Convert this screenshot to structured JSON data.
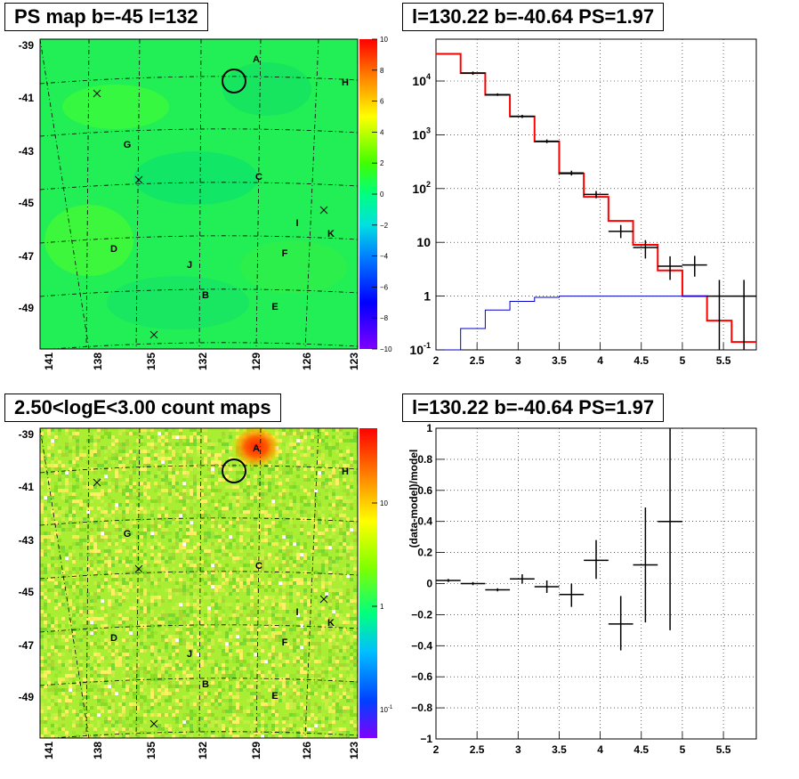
{
  "panels": {
    "top_left_title": "PS map b=-45 l=132",
    "top_right_title": "l=130.22 b=-40.64 PS=1.97",
    "bottom_left_title": "2.50<logE<3.00 count maps",
    "bottom_right_title": "l=130.22 b=-40.64 PS=1.97"
  },
  "map_axes": {
    "y_ticks": [
      "-39",
      "-41",
      "-43",
      "-45",
      "-47",
      "-49"
    ],
    "x_ticks": [
      "141",
      "138",
      "135",
      "132",
      "129",
      "126",
      "123"
    ]
  },
  "source_labels": [
    "A",
    "H",
    "G",
    "C",
    "I",
    "K",
    "D",
    "F",
    "J",
    "B",
    "E"
  ],
  "ps_colorbar": {
    "ticks": [
      "10",
      "8",
      "6",
      "4",
      "2",
      "0",
      "−2",
      "−4",
      "−6",
      "−8",
      "−10"
    ]
  },
  "count_colorbar": {
    "ticks": [
      "10",
      "1"
    ],
    "min_tick_base": "10",
    "min_tick_exp": "-1"
  },
  "chart_data": [
    {
      "type": "line",
      "panel": "top_right",
      "title": "l=130.22 b=-40.64 PS=1.97",
      "xlim": [
        2.0,
        5.9
      ],
      "ylim": [
        0.1,
        60000
      ],
      "ylog": true,
      "grid": true,
      "x_ticks": [
        "2",
        "2.5",
        "3",
        "3.5",
        "4",
        "4.5",
        "5",
        "5.5"
      ],
      "y_tick_labels": [
        {
          "base": "10",
          "exp": "-1",
          "v": 0.1
        },
        {
          "base": "1",
          "exp": "",
          "v": 1
        },
        {
          "base": "10",
          "exp": "",
          "v": 10
        },
        {
          "base": "10",
          "exp": "2",
          "v": 100
        },
        {
          "base": "10",
          "exp": "3",
          "v": 1000
        },
        {
          "base": "10",
          "exp": "4",
          "v": 10000
        }
      ],
      "series": [
        {
          "color": "#ff0000",
          "bin_edges": [
            2.0,
            2.3,
            2.6,
            2.9,
            3.2,
            3.5,
            3.8,
            4.1,
            4.4,
            4.7,
            5.0,
            5.3,
            5.6,
            5.9
          ],
          "values": [
            32000,
            14000,
            5500,
            2200,
            750,
            190,
            70,
            25,
            9,
            3,
            1,
            0.35,
            0.14
          ]
        },
        {
          "color": "#0000cc",
          "bin_edges": [
            2.0,
            2.3,
            2.6,
            2.9,
            3.2,
            3.5,
            3.8,
            4.1,
            4.4,
            4.7,
            5.0,
            5.3,
            5.6,
            5.9
          ],
          "values": [
            0.09,
            0.25,
            0.55,
            0.8,
            0.95,
            1.0,
            1.0,
            1.0,
            1.0,
            1.0,
            1.0,
            1.0,
            1.0
          ]
        },
        {
          "color": "#000000",
          "points": [
            {
              "x": 2.45,
              "y": 14000,
              "xlo": 2.3,
              "xhi": 2.6,
              "ylo": 13000,
              "yhi": 15000
            },
            {
              "x": 2.75,
              "y": 5600,
              "xlo": 2.6,
              "xhi": 2.9,
              "ylo": 5300,
              "yhi": 5900
            },
            {
              "x": 3.05,
              "y": 2200,
              "xlo": 2.9,
              "xhi": 3.2,
              "ylo": 2050,
              "yhi": 2350
            },
            {
              "x": 3.35,
              "y": 760,
              "xlo": 3.2,
              "xhi": 3.5,
              "ylo": 700,
              "yhi": 820
            },
            {
              "x": 3.65,
              "y": 195,
              "xlo": 3.5,
              "xhi": 3.8,
              "ylo": 175,
              "yhi": 215
            },
            {
              "x": 3.95,
              "y": 78,
              "xlo": 3.8,
              "xhi": 4.1,
              "ylo": 66,
              "yhi": 90
            },
            {
              "x": 4.25,
              "y": 16,
              "xlo": 4.1,
              "xhi": 4.4,
              "ylo": 12,
              "yhi": 21
            },
            {
              "x": 4.55,
              "y": 8,
              "xlo": 4.4,
              "xhi": 4.7,
              "ylo": 5,
              "yhi": 11
            },
            {
              "x": 4.85,
              "y": 3.6,
              "xlo": 4.7,
              "xhi": 5.0,
              "ylo": 2,
              "yhi": 5.5
            },
            {
              "x": 5.15,
              "y": 3.8,
              "xlo": 5.0,
              "xhi": 5.3,
              "ylo": 2.3,
              "yhi": 5.6
            },
            {
              "x": 5.45,
              "y": 1.0,
              "xlo": 5.3,
              "xhi": 5.6,
              "ylo": 0.1,
              "yhi": 2.0
            },
            {
              "x": 5.75,
              "y": 1.0,
              "xlo": 5.6,
              "xhi": 5.9,
              "ylo": 0.1,
              "yhi": 2.0
            }
          ]
        }
      ]
    },
    {
      "type": "scatter",
      "panel": "bottom_right",
      "title": "l=130.22 b=-40.64 PS=1.97",
      "ylabel": "(data-model)/model",
      "xlim": [
        2.0,
        5.9
      ],
      "ylim": [
        -1.0,
        1.0
      ],
      "grid": true,
      "x_ticks": [
        "2",
        "2.5",
        "3",
        "3.5",
        "4",
        "4.5",
        "5",
        "5.5"
      ],
      "y_ticks": [
        "1",
        "0.8",
        "0.6",
        "0.4",
        "0.2",
        "0",
        "−0.2",
        "−0.4",
        "−0.6",
        "−0.8",
        "−1"
      ],
      "points": [
        {
          "x": 2.15,
          "y": 0.02,
          "xlo": 2.0,
          "xhi": 2.3,
          "ylo": 0.01,
          "yhi": 0.03
        },
        {
          "x": 2.45,
          "y": 0.0,
          "xlo": 2.3,
          "xhi": 2.6,
          "ylo": -0.01,
          "yhi": 0.01
        },
        {
          "x": 2.75,
          "y": -0.04,
          "xlo": 2.6,
          "xhi": 2.9,
          "ylo": -0.05,
          "yhi": -0.03
        },
        {
          "x": 3.05,
          "y": 0.03,
          "xlo": 2.9,
          "xhi": 3.2,
          "ylo": 0.0,
          "yhi": 0.06
        },
        {
          "x": 3.35,
          "y": -0.02,
          "xlo": 3.2,
          "xhi": 3.5,
          "ylo": -0.06,
          "yhi": 0.02
        },
        {
          "x": 3.65,
          "y": -0.07,
          "xlo": 3.5,
          "xhi": 3.8,
          "ylo": -0.15,
          "yhi": 0.0
        },
        {
          "x": 3.95,
          "y": 0.15,
          "xlo": 3.8,
          "xhi": 4.1,
          "ylo": 0.03,
          "yhi": 0.28
        },
        {
          "x": 4.25,
          "y": -0.26,
          "xlo": 4.1,
          "xhi": 4.4,
          "ylo": -0.43,
          "yhi": -0.08
        },
        {
          "x": 4.55,
          "y": 0.12,
          "xlo": 4.4,
          "xhi": 4.7,
          "ylo": -0.25,
          "yhi": 0.49
        },
        {
          "x": 4.85,
          "y": 0.4,
          "xlo": 4.7,
          "xhi": 5.0,
          "ylo": -0.3,
          "yhi": 1.0
        }
      ]
    }
  ]
}
